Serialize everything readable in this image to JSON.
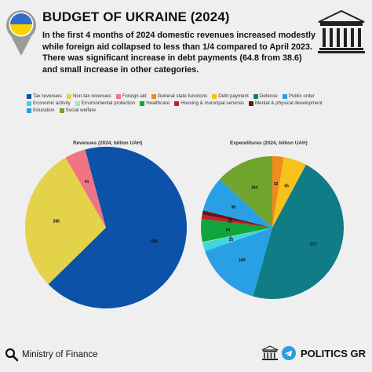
{
  "header": {
    "title": "BUDGET OF UKRAINE (2024)",
    "description": "In the first 4 months of 2024 domestic revenues increased modestly while foreign aid collapsed to less than 1/4 compared to April 2023. There was significant increase in debt payments (64.8 from 38.6) and small increase in other categories."
  },
  "legend_rows": [
    [
      {
        "label": "Tax revenues",
        "color": "#0b52a8"
      },
      {
        "label": "Non-tax revenues",
        "color": "#e4d24a"
      },
      {
        "label": "Foreign aid",
        "color": "#f07484"
      },
      {
        "label": "General state functions",
        "color": "#f08a1c"
      },
      {
        "label": "Debt payment",
        "color": "#f7c21a"
      },
      {
        "label": "Defence",
        "color": "#0f7c86"
      },
      {
        "label": "Public order",
        "color": "#29a0e6"
      }
    ],
    [
      {
        "label": "Economic activity",
        "color": "#3fd6dc"
      },
      {
        "label": "Environmental protection",
        "color": "#a8e6b0"
      },
      {
        "label": "Healthcare",
        "color": "#10a53a"
      },
      {
        "label": "Housing & municipal services",
        "color": "#c0202e"
      },
      {
        "label": "Mental & physical development",
        "color": "#6b1414"
      }
    ],
    [
      {
        "label": "Education",
        "color": "#29a0e6"
      },
      {
        "label": "Social welfare",
        "color": "#6fa52d"
      }
    ]
  ],
  "chart_data": [
    {
      "type": "pie",
      "title": "Revenues (2024, billion UAH)",
      "slices": [
        {
          "label": "Tax revenues",
          "value": 658,
          "color": "#0b52a8"
        },
        {
          "label": "Non-tax revenues",
          "value": 286,
          "color": "#e4d24a"
        },
        {
          "label": "Foreign aid",
          "value": 41,
          "color": "#f07484"
        }
      ]
    },
    {
      "type": "pie",
      "title": "Expenditures (2024, billion UAH)",
      "slices": [
        {
          "label": "General state functions",
          "value": 32,
          "color": "#f08a1c"
        },
        {
          "label": "Debt payment",
          "value": 65,
          "color": "#f7c21a"
        },
        {
          "label": "Defence",
          "value": 577,
          "color": "#0f7c86"
        },
        {
          "label": "Education",
          "value": 189,
          "color": "#29a0e6"
        },
        {
          "label": "Economic activity",
          "value": 25,
          "color": "#3fd6dc"
        },
        {
          "label": "Environmental protection",
          "value": 2,
          "color": "#a8e6b0"
        },
        {
          "label": "Healthcare",
          "value": 64,
          "color": "#10a53a"
        },
        {
          "label": "Housing & municipal services",
          "value": 12,
          "color": "#c0202e"
        },
        {
          "label": "Mental & physical development",
          "value": 12,
          "color": "#6b1414"
        },
        {
          "label": "Public order",
          "value": 98,
          "color": "#29a0e6"
        },
        {
          "label": "Social welfare",
          "value": 164,
          "color": "#6fa52d"
        }
      ],
      "slice_labels": [
        "32",
        "65",
        "577",
        "189",
        "25",
        "2",
        "64",
        "12",
        "12",
        "98",
        "164"
      ]
    }
  ],
  "footer": {
    "source": "Ministry of Finance",
    "brand": "POLITICS GR"
  }
}
